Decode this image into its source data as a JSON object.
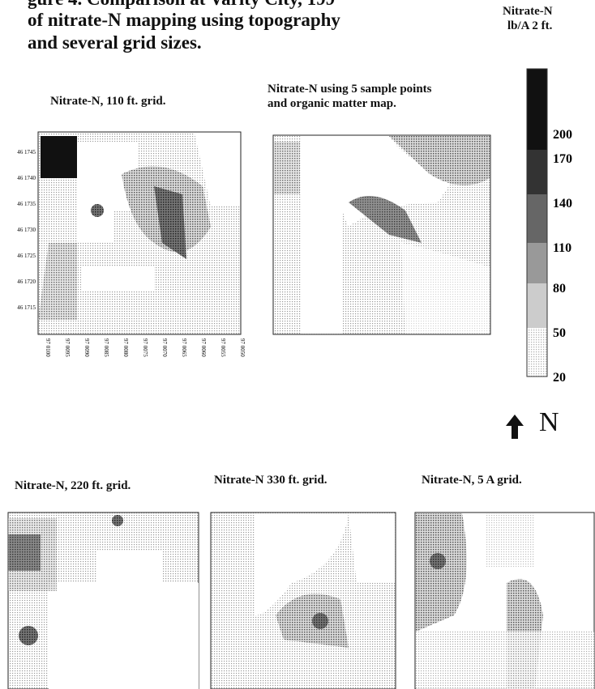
{
  "header": {
    "title_lines": [
      "gure 4. Comparison at Varity City, 199",
      "of nitrate-N mapping using topography",
      "and several grid sizes."
    ]
  },
  "legend": {
    "title_lines": [
      "Nitrate-N",
      "lb/A 2 ft."
    ],
    "values": [
      200,
      170,
      140,
      110,
      80,
      50,
      20
    ]
  },
  "maps": [
    {
      "title": "Nitrate-N, 110 ft. grid.",
      "y_labels": [
        "46 1745",
        "46 1740",
        "46 1735",
        "46 1730",
        "46 1725",
        "46 1720",
        "46 1715"
      ],
      "x_labels": [
        "97 0100",
        "97 0095",
        "97 0090",
        "97 0085",
        "97 0080",
        "97 0075",
        "97 0070",
        "97 0065",
        "97 0060",
        "97 0055",
        "97 0050"
      ]
    },
    {
      "title_lines": [
        "Nitrate-N using 5 sample points",
        "and organic matter map."
      ]
    },
    {
      "title": "Nitrate-N, 220 ft. grid."
    },
    {
      "title": "Nitrate-N 330 ft. grid."
    },
    {
      "title": "Nitrate-N, 5 A grid."
    }
  ],
  "north_label": "N"
}
